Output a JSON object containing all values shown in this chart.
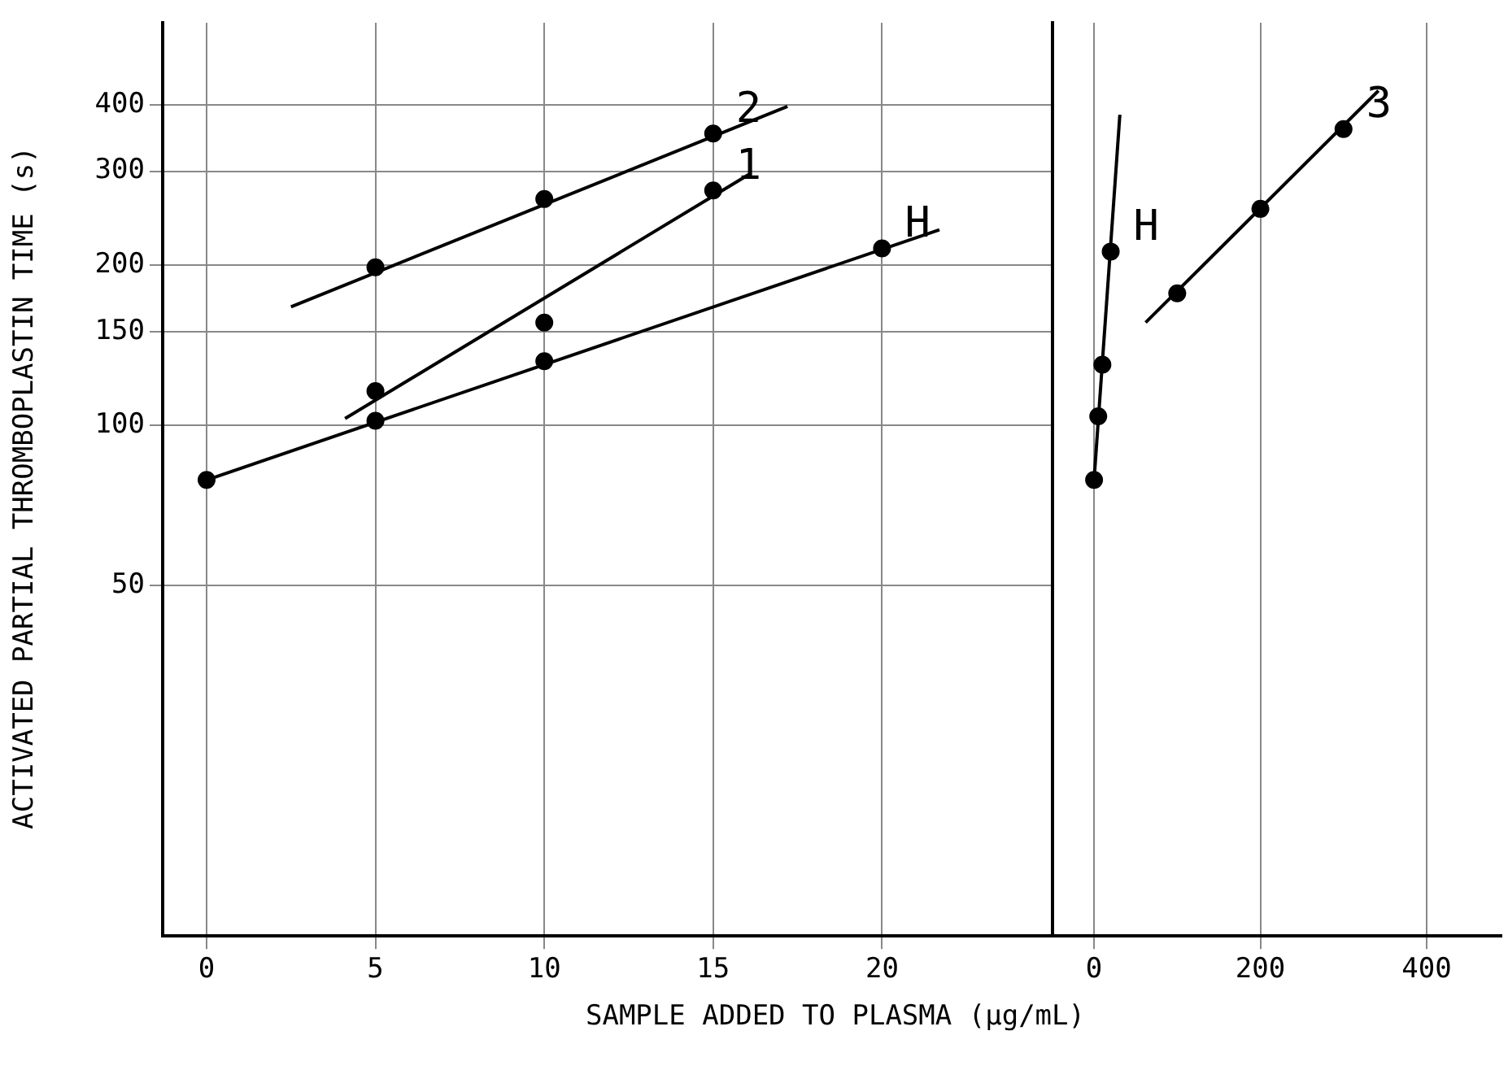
{
  "chart_data": [
    {
      "type": "scatter",
      "ylabel": "ACTIVATED PARTIAL THROMBOPLASTIN TIME (s)",
      "xlabel": "SAMPLE ADDED TO PLASMA (μg/mL)",
      "log": "y",
      "grid": true,
      "legend": false,
      "xlim": [
        -1.3,
        25
      ],
      "xticks": [
        0,
        5,
        10,
        15,
        20
      ],
      "ylim": [
        11,
        570
      ],
      "yticks": [
        50,
        100,
        150,
        200,
        300,
        400
      ],
      "series": [
        {
          "name": "2",
          "color": "#000000",
          "marker": "circle",
          "x": [
            5,
            10,
            15
          ],
          "values": [
            198,
            266,
            353
          ]
        },
        {
          "type": "line",
          "color": "#000000",
          "marker": "none",
          "x": [
            2.5,
            17.2
          ],
          "values": [
            167,
            397
          ]
        },
        {
          "name": "1",
          "color": "#000000",
          "marker": "circle",
          "x": [
            5,
            10,
            15
          ],
          "values": [
            116,
            156,
            276
          ]
        },
        {
          "type": "line",
          "color": "#000000",
          "marker": "none",
          "x": [
            4.1,
            16.1
          ],
          "values": [
            103,
            297
          ]
        },
        {
          "name": "H",
          "color": "#000000",
          "marker": "circle",
          "x": [
            0,
            5,
            10,
            20
          ],
          "values": [
            79,
            102,
            132,
            215
          ]
        },
        {
          "type": "line",
          "color": "#000000",
          "marker": "none",
          "x": [
            0,
            21.7
          ],
          "values": [
            79,
            233
          ]
        }
      ]
    },
    {
      "type": "scatter",
      "log": "y",
      "grid": true,
      "legend": false,
      "tick_labels": "x",
      "xlim": [
        -50,
        490
      ],
      "xticks": [
        0,
        200,
        400
      ],
      "ylim": [
        11,
        570
      ],
      "series": [
        {
          "name": "H",
          "color": "#000000",
          "marker": "circle",
          "x": [
            0,
            5,
            10,
            20
          ],
          "values": [
            79,
            104,
            130,
            212
          ]
        },
        {
          "type": "line",
          "color": "#000000",
          "marker": "none",
          "x": [
            0,
            31
          ],
          "values": [
            79,
            383
          ]
        },
        {
          "name": "3",
          "color": "#000000",
          "marker": "circle",
          "x": [
            100,
            200,
            300
          ],
          "values": [
            177,
            255,
            360
          ]
        },
        {
          "type": "line",
          "color": "#000000",
          "marker": "none",
          "x": [
            62,
            342
          ],
          "values": [
            156,
            425
          ]
        }
      ]
    }
  ]
}
